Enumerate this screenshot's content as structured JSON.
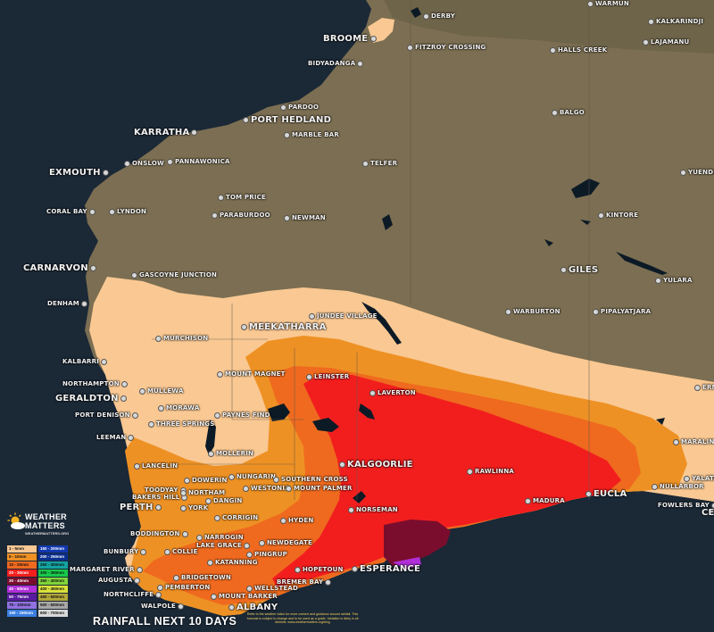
{
  "map": {
    "title": "RAINFALL NEXT 10 DAYS",
    "disclaimer": "Refer to the weather video for more context and guidance around rainfall. This forecast is subject to change and to be used as a guide. Variation is likely in all districts. www.weathermatters.org/blog",
    "brand": {
      "line1": "WEATHER",
      "line2": "MATTERS",
      "line3": "WEATHERMATTERS.ORG"
    },
    "colors": {
      "ocean": "#1b2836",
      "land": "#7b6e52",
      "band_1_5": "#f9c893",
      "band_5_10": "#ee9124",
      "band_10_20": "#ef6a1f",
      "band_20_30": "#f21e1e",
      "band_30_40": "#7a0d2e",
      "band_40_50": "#b02fd8"
    },
    "legend": [
      {
        "label": "1 - 5mm",
        "color": "#f9c893"
      },
      {
        "label": "150 - 200mm",
        "color": "#1238b0"
      },
      {
        "label": "5 - 10mm",
        "color": "#ee9124"
      },
      {
        "label": "200 - 250mm",
        "color": "#0b2f8e"
      },
      {
        "label": "10 - 20mm",
        "color": "#ef6a1f"
      },
      {
        "label": "250 - 300mm",
        "color": "#13a3a0"
      },
      {
        "label": "20 - 30mm",
        "color": "#f21e1e"
      },
      {
        "label": "300 - 350mm",
        "color": "#17c94a"
      },
      {
        "label": "30 - 40mm",
        "color": "#7a0d2e"
      },
      {
        "label": "350 - 400mm",
        "color": "#7fd43a"
      },
      {
        "label": "40 - 50mm",
        "color": "#b02fd8"
      },
      {
        "label": "400 - 450mm",
        "color": "#d8e23a"
      },
      {
        "label": "50 - 75mm",
        "color": "#5a1a9e"
      },
      {
        "label": "450 - 500mm",
        "color": "#b2a83a"
      },
      {
        "label": "75 - 100mm",
        "color": "#8f72e0"
      },
      {
        "label": "500 - 600mm",
        "color": "#a8a8a8"
      },
      {
        "label": "100 - 150mm",
        "color": "#3a7ee0"
      },
      {
        "label": "600 - 700mm",
        "color": "#d8d8d8"
      }
    ],
    "places": {
      "broome": "BROOME",
      "derby": "DERBY",
      "fitzroy_crossing": "FITZROY CROSSING",
      "bidyadanga": "BIDYADANGA",
      "halls_creek": "HALLS CREEK",
      "warmun": "WARMUN",
      "kalkarindji": "KALKARINDJI",
      "lajamanu": "LAJAMANU",
      "balgo": "BALGO",
      "pardoo": "PARDOO",
      "port_hedland": "PORT HEDLAND",
      "karratha": "KARRATHA",
      "marble_bar": "MARBLE BAR",
      "telfer": "TELFER",
      "exmouth": "EXMOUTH",
      "onslow": "ONSLOW",
      "pannawonica": "PANNAWONICA",
      "tom_price": "TOM PRICE",
      "paraburdoo": "PARABURDOO",
      "newman": "NEWMAN",
      "coral_bay": "CORAL BAY",
      "lyndon": "LYNDON",
      "kintore": "KINTORE",
      "yuendumu": "YUENDUMU",
      "carnarvon": "CARNARVON",
      "gascoyne_junction": "GASCOYNE JUNCTION",
      "giles": "GILES",
      "yulara": "YULARA",
      "denham": "DENHAM",
      "jundee_village": "JUNDEE VILLAGE",
      "warburton": "WARBURTON",
      "pipalyatjara": "PIPALYATJARA",
      "meekatharra": "MEEKATHARRA",
      "murchison": "MURCHISON",
      "kalbarri": "KALBARRI",
      "mount_magnet": "MOUNT MAGNET",
      "leinster": "LEINSTER",
      "northampton": "NORTHAMPTON",
      "geraldton": "GERALDTON",
      "mullewa": "MULLEWA",
      "laverton": "LAVERTON",
      "ern": "ERN",
      "port_denison": "PORT DENISON",
      "morawa": "MORAWA",
      "paynes_find": "PAYNES FIND",
      "three_springs": "THREE SPRINGS",
      "leeman": "LEEMAN",
      "maralinga": "MARALINGA",
      "mollerin": "MOLLERIN",
      "kalgoorlie": "KALGOORLIE",
      "lancelin": "LANCELIN",
      "rawlinna": "RAWLINNA",
      "yalata": "YALATA",
      "dowerin": "DOWERIN",
      "nungarin": "NUNGARIN",
      "southern_cross": "SOUTHERN CROSS",
      "toodyay": "TOODYAY",
      "bakers_hill": "BAKERS HILL",
      "westonia": "WESTONIA",
      "mount_palmer": "MOUNT PALMER",
      "northam": "NORTHAM",
      "nullarbor": "NULLARBOR",
      "eucla": "EUCLA",
      "perth": "PERTH",
      "dangin": "DANGIN",
      "york": "YORK",
      "madura": "MADURA",
      "fowlers_bay": "FOWLERS BAY",
      "ce": "CE",
      "norseman": "NORSEMAN",
      "corrigin": "CORRIGIN",
      "hyden": "HYDEN",
      "boddington": "BODDINGTON",
      "narrogin": "NARROGIN",
      "bunbury": "BUNBURY",
      "collie": "COLLIE",
      "lake_grace": "LAKE GRACE",
      "newdegate": "NEWDEGATE",
      "margaret_river": "MARGARET RIVER",
      "katanning": "KATANNING",
      "pingrup": "PINGRUP",
      "hopetoun": "HOPETOUN",
      "esperance": "ESPERANCE",
      "augusta": "AUGUSTA",
      "bridgetown": "BRIDGETOWN",
      "bremer_bay": "BREMER BAY",
      "pemberton": "PEMBERTON",
      "wellstead": "WELLSTEAD",
      "northcliffe": "NORTHCLIFFE",
      "mount_barker": "MOUNT BARKER",
      "walpole": "WALPOLE",
      "albany": "ALBANY"
    }
  }
}
